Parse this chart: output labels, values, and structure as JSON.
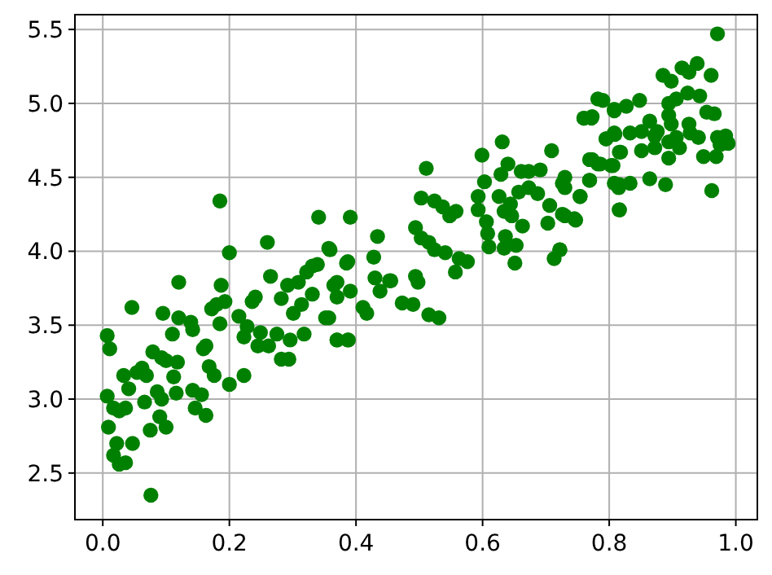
{
  "chart_data": {
    "type": "scatter",
    "grid": true,
    "marker": "circle",
    "xlim": [
      -0.044,
      1.034
    ],
    "ylim": [
      2.185,
      5.6
    ],
    "xticks": [
      {
        "value": 0,
        "label": "0.0"
      },
      0.2,
      0.4,
      0.6,
      0.8,
      {
        "value": 1,
        "label": "1.0"
      }
    ],
    "yticks": [
      2.5,
      {
        "value": 3,
        "label": "3.0"
      },
      3.5,
      {
        "value": 4,
        "label": "4.0"
      },
      4.5,
      {
        "value": 5,
        "label": "5.0"
      },
      5.5
    ],
    "series": [
      {
        "color": "#008000",
        "x": [
          0.007,
          0.011,
          0.007,
          0.009,
          0.022,
          0.017,
          0.026,
          0.036,
          0.047,
          0.033,
          0.041,
          0.017,
          0.026,
          0.036,
          0.046,
          0.054,
          0.062,
          0.069,
          0.066,
          0.075,
          0.076,
          0.079,
          0.086,
          0.093,
          0.09,
          0.1,
          0.093,
          0.1,
          0.095,
          0.11,
          0.112,
          0.118,
          0.116,
          0.12,
          0.12,
          0.139,
          0.142,
          0.142,
          0.146,
          0.156,
          0.163,
          0.159,
          0.163,
          0.168,
          0.176,
          0.172,
          0.18,
          0.187,
          0.185,
          0.193,
          0.2,
          0.2,
          0.215,
          0.223,
          0.228,
          0.223,
          0.236,
          0.241,
          0.245,
          0.249,
          0.26,
          0.265,
          0.262,
          0.275,
          0.282,
          0.282,
          0.294,
          0.292,
          0.296,
          0.301,
          0.309,
          0.314,
          0.318,
          0.322,
          0.331,
          0.331,
          0.339,
          0.352,
          0.359,
          0.365,
          0.37,
          0.37,
          0.387,
          0.385,
          0.391,
          0.411,
          0.417,
          0.428,
          0.43,
          0.438,
          0.453,
          0.185,
          0.341,
          0.511,
          0.503,
          0.524,
          0.537,
          0.548,
          0.558,
          0.494,
          0.503,
          0.515,
          0.524,
          0.541,
          0.563,
          0.576,
          0.557,
          0.494,
          0.498,
          0.473,
          0.49,
          0.515,
          0.531,
          0.455,
          0.434,
          0.391,
          0.357,
          0.387,
          0.37,
          0.357,
          0.37,
          0.388,
          0.599,
          0.603,
          0.593,
          0.593,
          0.606,
          0.608,
          0.61,
          0.631,
          0.64,
          0.629,
          0.626,
          0.634,
          0.644,
          0.646,
          0.636,
          0.634,
          0.653,
          0.663,
          0.651,
          0.661,
          0.673,
          0.691,
          0.657,
          0.673,
          0.687,
          0.709,
          0.706,
          0.703,
          0.73,
          0.73,
          0.726,
          0.747,
          0.722,
          0.713,
          0.754,
          0.769,
          0.773,
          0.76,
          0.773,
          0.782,
          0.795,
          0.803,
          0.808,
          0.808,
          0.816,
          0.816,
          0.818,
          0.79,
          0.971,
          0.782,
          0.76,
          0.772,
          0.808,
          0.827,
          0.848,
          0.795,
          0.809,
          0.833,
          0.851,
          0.864,
          0.876,
          0.885,
          0.898,
          0.915,
          0.926,
          0.939,
          0.961,
          0.924,
          0.943,
          0.894,
          0.906,
          0.954,
          0.966,
          0.894,
          0.898,
          0.926,
          0.906,
          0.928,
          0.941,
          0.971,
          0.984,
          0.988,
          0.975,
          0.872,
          0.894,
          0.851,
          0.872,
          0.911,
          0.894,
          0.949,
          0.969,
          0.816,
          0.769,
          0.786,
          0.806,
          0.726,
          0.769,
          0.808,
          0.833,
          0.864,
          0.889,
          0.815,
          0.754,
          0.816,
          0.962,
          0.73,
          0.745,
          0.722
        ],
        "values": [
          3.43,
          3.34,
          3.02,
          2.81,
          2.7,
          2.62,
          2.56,
          2.57,
          2.7,
          3.16,
          3.07,
          2.94,
          2.92,
          2.94,
          3.62,
          3.18,
          3.21,
          3.16,
          2.98,
          2.79,
          2.35,
          3.32,
          3.05,
          3.0,
          2.88,
          2.81,
          3.28,
          3.26,
          3.58,
          3.44,
          3.15,
          3.25,
          3.04,
          3.79,
          3.55,
          3.52,
          3.47,
          3.06,
          2.94,
          3.03,
          2.89,
          3.34,
          3.36,
          3.22,
          3.16,
          3.61,
          3.64,
          3.77,
          3.51,
          3.66,
          3.1,
          3.99,
          3.56,
          3.16,
          3.49,
          3.42,
          3.66,
          3.69,
          3.36,
          3.45,
          4.06,
          3.83,
          3.36,
          3.44,
          3.68,
          3.27,
          3.27,
          3.77,
          3.4,
          3.58,
          3.79,
          3.64,
          3.44,
          3.86,
          3.9,
          3.71,
          3.91,
          3.55,
          4.01,
          3.77,
          3.69,
          3.4,
          3.4,
          3.92,
          3.73,
          3.62,
          3.58,
          3.96,
          3.82,
          3.73,
          3.8,
          4.34,
          4.23,
          4.56,
          4.36,
          4.34,
          4.3,
          4.24,
          4.27,
          4.16,
          4.09,
          4.06,
          4.01,
          3.99,
          3.95,
          3.93,
          3.86,
          3.83,
          3.79,
          3.65,
          3.64,
          3.57,
          3.55,
          3.8,
          4.1,
          4.23,
          4.02,
          3.93,
          3.79,
          3.55,
          3.4,
          3.4,
          4.65,
          4.47,
          4.37,
          4.28,
          4.2,
          4.12,
          4.03,
          4.74,
          4.59,
          4.52,
          4.37,
          4.27,
          4.32,
          4.24,
          4.1,
          4.02,
          4.04,
          4.17,
          3.92,
          4.54,
          4.54,
          4.55,
          4.4,
          4.43,
          4.39,
          4.68,
          4.31,
          4.19,
          4.5,
          4.43,
          4.25,
          4.21,
          4.01,
          3.95,
          4.37,
          4.48,
          4.62,
          4.9,
          4.91,
          4.59,
          4.76,
          4.58,
          4.96,
          4.8,
          4.45,
          4.28,
          4.67,
          5.02,
          5.47,
          5.03,
          4.9,
          4.9,
          4.95,
          4.98,
          5.02,
          4.76,
          4.79,
          4.8,
          4.81,
          4.88,
          4.81,
          5.19,
          5.15,
          5.24,
          5.21,
          5.27,
          5.19,
          5.07,
          5.05,
          5.0,
          5.03,
          4.94,
          4.93,
          4.92,
          4.86,
          4.86,
          4.77,
          4.8,
          4.77,
          4.77,
          4.78,
          4.73,
          4.72,
          4.78,
          4.74,
          4.68,
          4.7,
          4.7,
          4.63,
          4.64,
          4.64,
          4.67,
          4.62,
          4.59,
          4.58,
          4.46,
          4.48,
          4.46,
          4.46,
          4.49,
          4.45,
          4.43,
          4.37,
          4.28,
          4.41,
          4.24,
          4.22,
          4.01
        ]
      }
    ]
  }
}
